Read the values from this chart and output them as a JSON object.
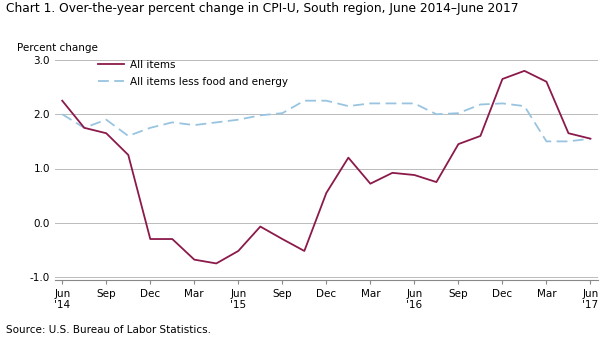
{
  "title": "Chart 1. Over-the-year percent change in CPI-U, South region, June 2014–June 2017",
  "ylabel": "Percent change",
  "source": "Source: U.S. Bureau of Labor Statistics.",
  "ylim": [
    -1.0,
    3.0
  ],
  "yticks": [
    -1.0,
    0.0,
    1.0,
    2.0,
    3.0
  ],
  "all_items": [
    2.25,
    1.75,
    1.65,
    1.25,
    -0.3,
    -0.3,
    -0.68,
    -0.75,
    -0.52,
    -0.07,
    -0.3,
    -0.52,
    0.55,
    1.2,
    0.72,
    0.92,
    0.88,
    0.75,
    1.45,
    1.6,
    2.65,
    2.8,
    2.6,
    1.65,
    1.55
  ],
  "all_items_less": [
    2.0,
    1.75,
    1.9,
    1.6,
    1.75,
    1.85,
    1.8,
    1.85,
    1.9,
    1.98,
    2.02,
    2.25,
    2.25,
    2.15,
    2.2,
    2.2,
    2.2,
    2.0,
    2.02,
    2.18,
    2.2,
    2.15,
    1.5,
    1.5,
    1.55
  ],
  "all_items_color": "#8b1a4a",
  "all_items_less_color": "#99c4e0",
  "background_color": "#ffffff",
  "grid_color": "#bbbbbb",
  "xtick_labels": [
    "Jun\n'14",
    "Sep",
    "Dec",
    "Mar",
    "Jun\n'15",
    "Sep",
    "Dec",
    "Mar",
    "Jun\n'16",
    "Sep",
    "Dec",
    "Mar",
    "Jun\n'17"
  ],
  "xtick_positions": [
    0,
    3,
    6,
    9,
    12,
    15,
    18,
    21,
    24,
    27,
    30,
    33,
    36
  ]
}
